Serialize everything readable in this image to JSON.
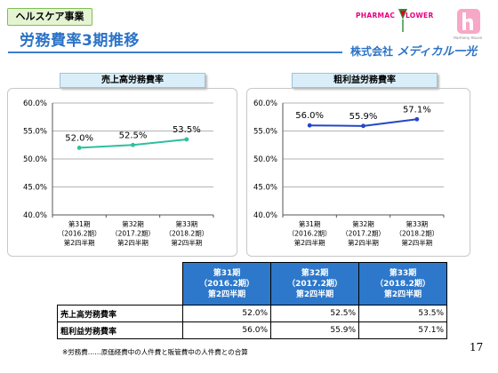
{
  "header": {
    "section_tag": "ヘルスケア事業",
    "title": "労務費率3期推移",
    "company_prefix": "株式会社",
    "company_name": "メディカル一光",
    "logo_left": "PHARMAC",
    "logo_right": "LOWER",
    "logo_sub": "Harmony House"
  },
  "chart_data": [
    {
      "type": "line",
      "title": "売上高労務費率",
      "categories": [
        [
          "第31期",
          "（2016.2期）",
          "第2四半期"
        ],
        [
          "第32期",
          "（2017.2期）",
          "第2四半期"
        ],
        [
          "第33期",
          "（2018.2期）",
          "第2四半期"
        ]
      ],
      "series": [
        {
          "values": [
            52.0,
            52.5,
            53.5
          ],
          "labels": [
            "52.0%",
            "52.5%",
            "53.5%"
          ]
        }
      ],
      "ylim": [
        40,
        60
      ],
      "yticks": [
        "40.0%",
        "45.0%",
        "50.0%",
        "55.0%",
        "60.0%"
      ],
      "ytick_values": [
        40,
        45,
        50,
        55,
        60
      ],
      "grid": true,
      "color": "#2ebfa0"
    },
    {
      "type": "line",
      "title": "粗利益労務費率",
      "categories": [
        [
          "第31期",
          "（2016.2期）",
          "第2四半期"
        ],
        [
          "第32期",
          "（2017.2期）",
          "第2四半期"
        ],
        [
          "第33期",
          "（2018.2期）",
          "第2四半期"
        ]
      ],
      "series": [
        {
          "values": [
            56.0,
            55.9,
            57.1
          ],
          "labels": [
            "56.0%",
            "55.9%",
            "57.1%"
          ]
        }
      ],
      "ylim": [
        40,
        60
      ],
      "yticks": [
        "40.0%",
        "45.0%",
        "50.0%",
        "55.0%",
        "60.0%"
      ],
      "ytick_values": [
        40,
        45,
        50,
        55,
        60
      ],
      "grid": true,
      "color": "#2446c8"
    }
  ],
  "table": {
    "columns": [
      [
        "第31期",
        "（2016.2期）",
        "第2四半期"
      ],
      [
        "第32期",
        "（2017.2期）",
        "第2四半期"
      ],
      [
        "第33期",
        "（2018.2期）",
        "第2四半期"
      ]
    ],
    "rows": [
      {
        "label": "売上高労務費率",
        "values": [
          "52.0%",
          "52.5%",
          "53.5%"
        ]
      },
      {
        "label": "粗利益労務費率",
        "values": [
          "56.0%",
          "55.9%",
          "57.1%"
        ]
      }
    ]
  },
  "footnote": "※労務費……原価経費中の人件費と販管費中の人件費との合算",
  "page_number": "17",
  "colors": {
    "accent": "#2b73c6",
    "table_header": "#2d78cb",
    "tag_bg": "#e4f4d3"
  }
}
